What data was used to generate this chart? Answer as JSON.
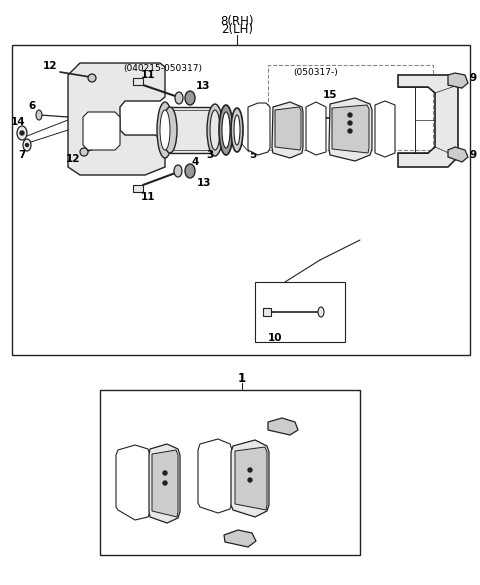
{
  "title_line1": "8(RH)",
  "title_line2": "2(LH)",
  "label1": "1",
  "label3": "3",
  "label4": "4",
  "label5": "5",
  "label6": "6",
  "label7": "7",
  "label9a": "9",
  "label9b": "9",
  "label10": "10",
  "label11a": "11",
  "label11b": "11",
  "label12a": "12",
  "label12b": "12",
  "label13a": "13",
  "label13b": "13",
  "label14": "14",
  "label15": "15",
  "date_range1": "(040215-050317)",
  "date_range2": "(050317-)",
  "fig_width": 4.8,
  "fig_height": 5.85,
  "bg_color": "#ffffff",
  "lc": "#222222",
  "fc_light": "#e8e8e8",
  "fc_mid": "#cccccc",
  "fc_dark": "#999999"
}
